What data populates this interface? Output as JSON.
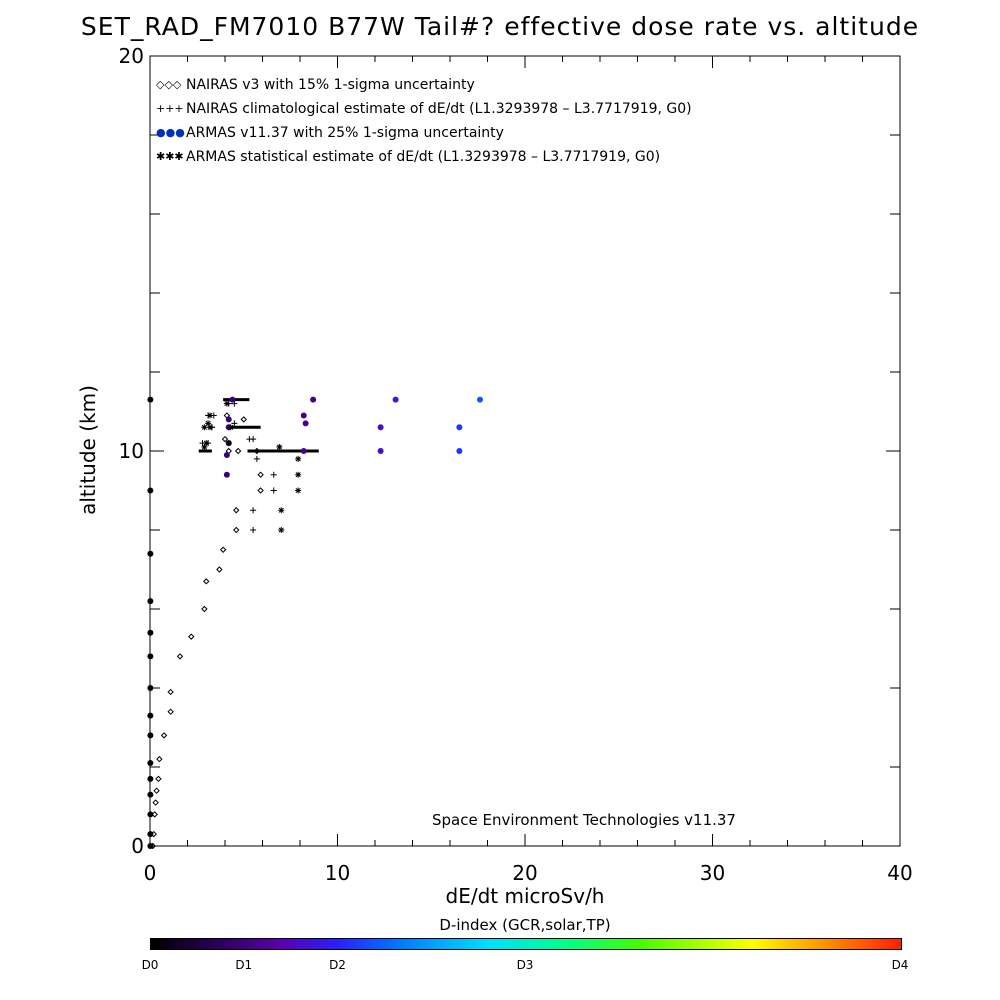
{
  "title": "SET_RAD_FM7010  B77W Tail#? effective dose rate vs. altitude",
  "credit": "Space Environment Technologies v11.37",
  "colorbar": {
    "title": "D-index (GCR,solar,TP)",
    "ticks": [
      {
        "label": "D0",
        "pos": 0.0
      },
      {
        "label": "D1",
        "pos": 0.125
      },
      {
        "label": "D2",
        "pos": 0.25
      },
      {
        "label": "D3",
        "pos": 0.5
      },
      {
        "label": "D4",
        "pos": 1.0
      }
    ]
  },
  "chart_data": {
    "type": "scatter",
    "title": "SET_RAD_FM7010  B77W Tail#? effective dose rate vs. altitude",
    "xlabel": "dE/dt microSv/h",
    "ylabel": "altitude (km)",
    "xlim": [
      0,
      40
    ],
    "ylim": [
      0,
      20
    ],
    "x_ticks": [
      0,
      10,
      20,
      30,
      40
    ],
    "y_ticks": [
      0,
      10,
      20
    ],
    "grid": false,
    "legend_position": "top-left",
    "series": [
      {
        "name": "NAIRAS v3 with 15% 1-sigma uncertainty",
        "marker": "diamond",
        "legend_marker": "◇◇◇",
        "color": "#000000",
        "x": [
          0.15,
          0.2,
          0.25,
          0.3,
          0.35,
          0.45,
          0.5,
          0.75,
          1.1,
          1.1,
          1.6,
          2.2,
          2.9,
          3.0,
          3.7,
          3.9,
          4.6,
          4.6,
          5.9,
          5.9,
          4.7,
          4.2,
          4.0,
          5.7,
          4.2,
          4.1,
          5.0
        ],
        "y": [
          0.0,
          0.3,
          0.8,
          1.1,
          1.4,
          1.7,
          2.2,
          2.8,
          3.4,
          3.9,
          4.8,
          5.3,
          6.0,
          6.7,
          7.0,
          7.5,
          8.0,
          8.5,
          9.0,
          9.4,
          10.0,
          10.0,
          10.3,
          10.0,
          10.6,
          10.9,
          10.8
        ]
      },
      {
        "name": "NAIRAS climatological estimate of dE/dt (L1.3293978 – L3.7717919, G0)",
        "marker": "plus",
        "legend_marker": "+++",
        "color": "#000000",
        "x": [
          5.5,
          5.5,
          6.6,
          6.6,
          5.3,
          2.8,
          3.1,
          3.3,
          3.3,
          3.1,
          3.4,
          4.2,
          4.5,
          5.5,
          5.7,
          4.5
        ],
        "y": [
          8.0,
          8.5,
          9.0,
          9.4,
          10.3,
          10.2,
          10.2,
          10.6,
          10.6,
          10.9,
          10.9,
          11.2,
          11.2,
          10.3,
          9.8,
          10.7
        ]
      },
      {
        "name": "ARMAS v11.37 with 25% 1-sigma uncertainty",
        "marker": "dot",
        "legend_marker": "●●●",
        "color_by": "D-index",
        "x": [
          0.02,
          0.02,
          0.02,
          0.02,
          0.02,
          0.02,
          0.02,
          0.02,
          0.02,
          0.02,
          0.02,
          0.02,
          0.02,
          0.02,
          0.02,
          4.1,
          4.1,
          4.2,
          4.2,
          4.2,
          4.4,
          8.2,
          8.3,
          8.2,
          8.7,
          12.3,
          12.3,
          13.1,
          16.5,
          16.5,
          17.6
        ],
        "y": [
          0.0,
          0.3,
          0.8,
          1.3,
          1.7,
          2.1,
          2.8,
          3.3,
          4.0,
          4.8,
          5.4,
          6.2,
          7.4,
          9.0,
          11.3,
          9.4,
          9.9,
          10.2,
          10.6,
          10.8,
          11.3,
          10.0,
          10.7,
          10.9,
          11.3,
          10.0,
          10.6,
          11.3,
          10.0,
          10.6,
          11.3
        ],
        "d_index": [
          0.0,
          0.0,
          0.0,
          0.0,
          0.0,
          0.0,
          0.0,
          0.0,
          0.0,
          0.0,
          0.0,
          0.0,
          0.0,
          0.0,
          0.0,
          0.12,
          0.12,
          0.12,
          0.12,
          0.12,
          0.12,
          0.14,
          0.14,
          0.14,
          0.14,
          0.2,
          0.2,
          0.22,
          0.27,
          0.27,
          0.3
        ]
      },
      {
        "name": "ARMAS statistical estimate of dE/dt (L1.3293978 – L3.7717919, G0)",
        "marker": "asterisk",
        "legend_marker": "✱✱✱",
        "color": "#000000",
        "x": [
          7.0,
          7.0,
          7.9,
          7.9,
          7.9,
          6.9,
          2.9,
          3.0,
          3.2,
          3.2,
          2.9,
          3.1,
          4.1,
          4.3,
          4.2
        ],
        "y": [
          8.0,
          8.5,
          9.0,
          9.4,
          9.8,
          10.1,
          10.1,
          10.2,
          10.6,
          10.9,
          10.6,
          10.7,
          11.2,
          10.6,
          10.2
        ]
      }
    ],
    "track_segments": [
      {
        "x0": 2.6,
        "x1": 3.3,
        "y": 10.0
      },
      {
        "x0": 5.2,
        "x1": 9.0,
        "y": 10.0
      },
      {
        "x0": 4.1,
        "x1": 5.9,
        "y": 10.6
      },
      {
        "x0": 3.9,
        "x1": 5.3,
        "y": 11.3
      }
    ]
  }
}
